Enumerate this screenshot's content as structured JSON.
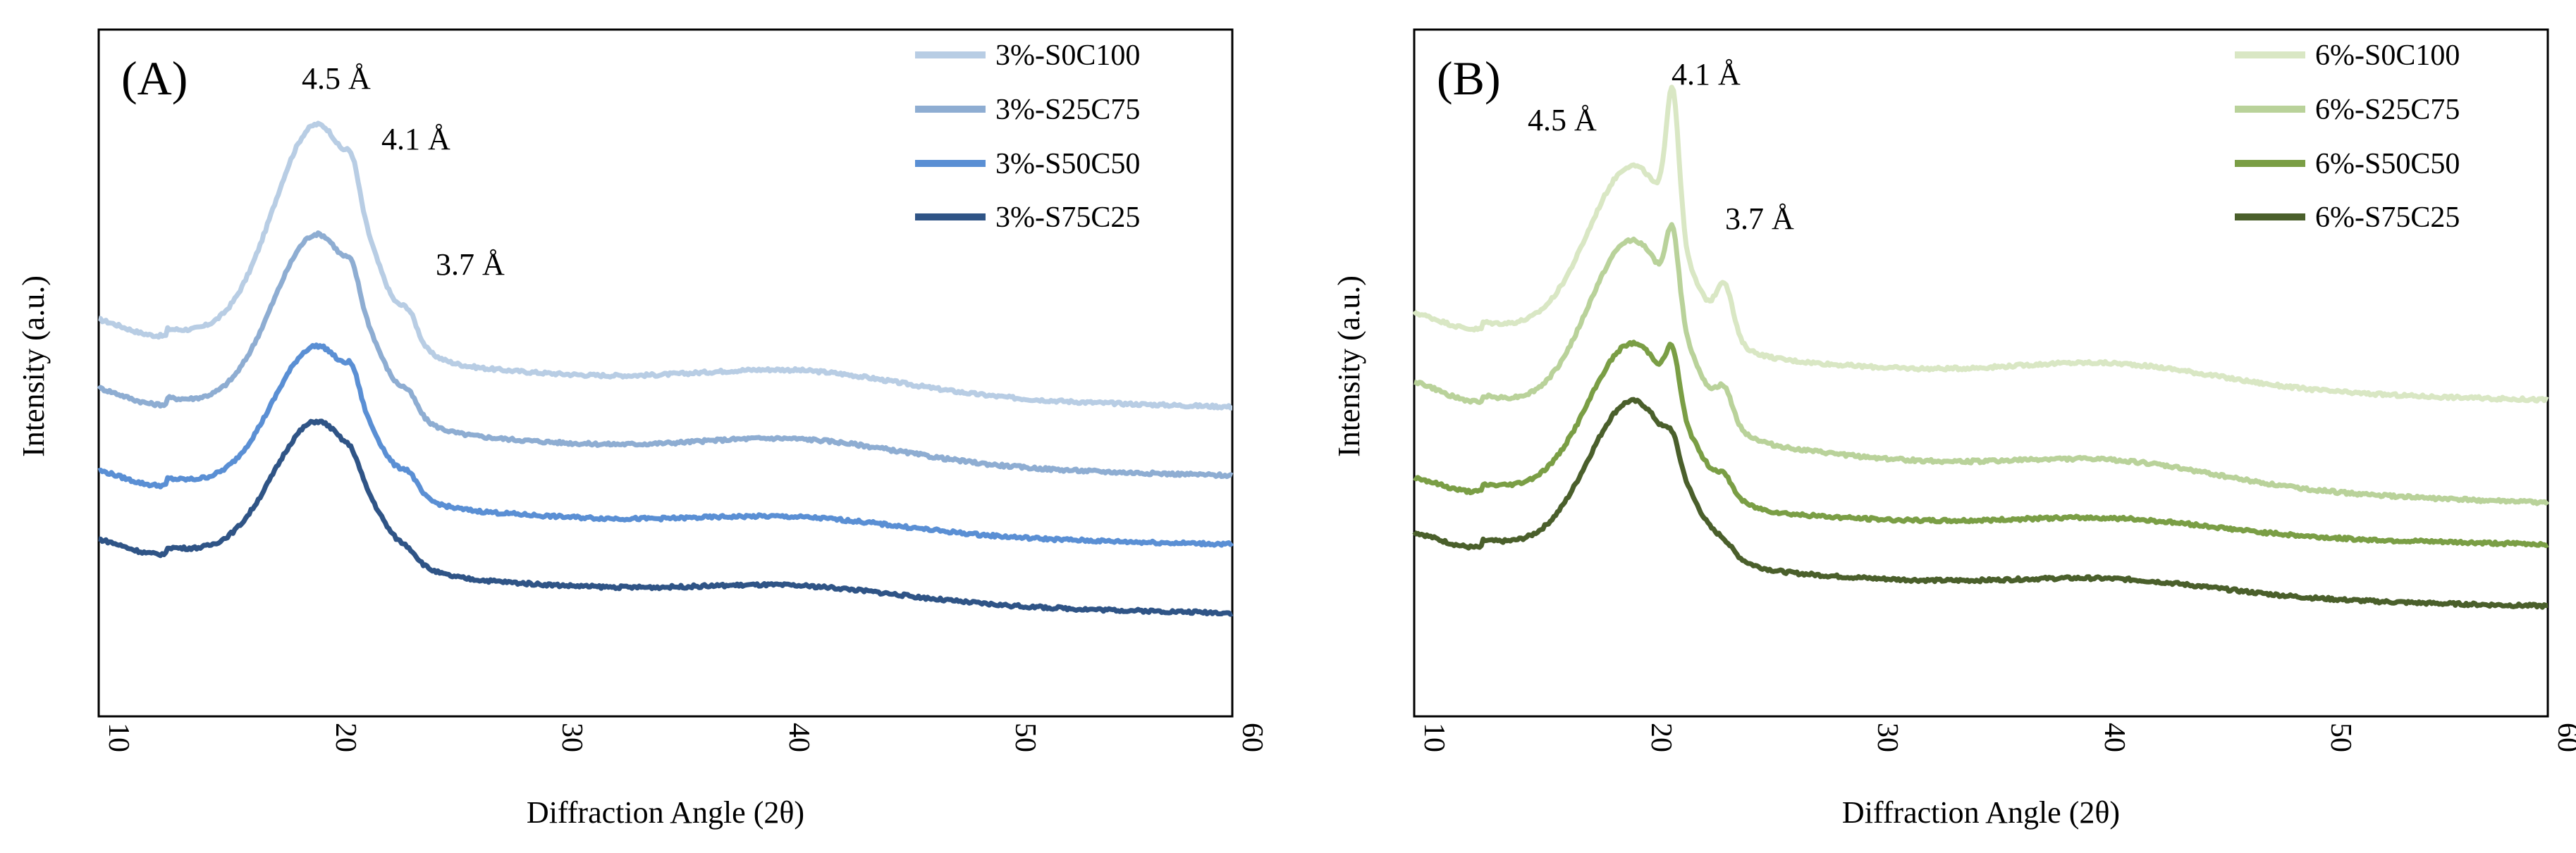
{
  "chart_data": [
    {
      "type": "line",
      "panel_label": "(A)",
      "xlabel": "Diffraction Angle (2θ)",
      "ylabel": "Intensity (a.u.)",
      "xlim": [
        10,
        60
      ],
      "ylim": [
        0,
        100
      ],
      "xticks": [
        "10",
        "20",
        "30",
        "40",
        "50",
        "60"
      ],
      "legend_position": "top-right",
      "annotations": [
        {
          "text": "4.5 Å",
          "x": 20.5,
          "y": 92
        },
        {
          "text": "4.1 Å",
          "x": 23.0,
          "y": 83
        },
        {
          "text": "3.7 Å",
          "x": 25.5,
          "y": 65
        }
      ],
      "series": [
        {
          "name": "3%-S0C100",
          "color": "#b8cde4",
          "baseline": 58,
          "peak": 33,
          "sharp": 4,
          "shoulder": 3,
          "hump": 3,
          "tail": 45
        },
        {
          "name": "3%-S25C75",
          "color": "#8eadd2",
          "baseline": 48,
          "peak": 27,
          "sharp": 3,
          "shoulder": 2,
          "hump": 3,
          "tail": 35
        },
        {
          "name": "3%-S50C50",
          "color": "#5a8fd4",
          "baseline": 36,
          "peak": 22,
          "sharp": 3,
          "shoulder": 2,
          "hump": 2,
          "tail": 25
        },
        {
          "name": "3%-S75C25",
          "color": "#2f5486",
          "baseline": 26,
          "peak": 21,
          "sharp": 1.5,
          "shoulder": 1,
          "hump": 2,
          "tail": 15
        }
      ]
    },
    {
      "type": "line",
      "panel_label": "(B)",
      "xlabel": "Diffraction Angle (2θ)",
      "ylabel": "Intensity (a.u.)",
      "xlim": [
        10,
        60
      ],
      "ylim": [
        0,
        100
      ],
      "xticks": [
        "10",
        "20",
        "30",
        "40",
        "50",
        "60"
      ],
      "legend_position": "top-right",
      "annotations": [
        {
          "text": "4.1 Å",
          "x": 23.2,
          "y": 93
        },
        {
          "text": "4.5 Å",
          "x": 17.8,
          "y": 85
        },
        {
          "text": "3.7 Å",
          "x": 25.1,
          "y": 72
        }
      ],
      "series": [
        {
          "name": "6%-S0C100",
          "color": "#d9e7c4",
          "baseline": 59,
          "peak": 26,
          "sharp": 20,
          "shoulder": 7,
          "hump": 3,
          "tail": 46
        },
        {
          "name": "6%-S25C75",
          "color": "#b9d29a",
          "baseline": 49,
          "peak": 27,
          "sharp": 11,
          "shoulder": 4,
          "hump": 3,
          "tail": 31
        },
        {
          "name": "6%-S50C50",
          "color": "#7a9e45",
          "baseline": 35,
          "peak": 23,
          "sharp": 7,
          "shoulder": 2,
          "hump": 2,
          "tail": 25
        },
        {
          "name": "6%-S75C25",
          "color": "#4a5f2b",
          "baseline": 27,
          "peak": 23,
          "sharp": 3,
          "shoulder": 1,
          "hump": 2,
          "tail": 16
        }
      ]
    }
  ]
}
